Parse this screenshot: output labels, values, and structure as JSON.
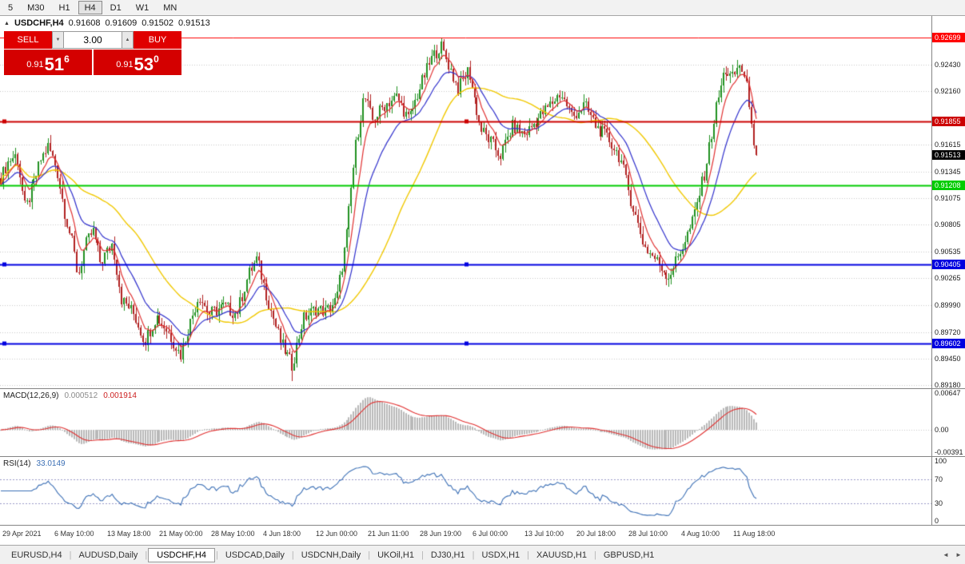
{
  "toolbar": {
    "timeframes": [
      "5",
      "M30",
      "H1",
      "H4",
      "D1",
      "W1",
      "MN"
    ],
    "active": "H4"
  },
  "chart_header": {
    "symbol_period": "USDCHF,H4",
    "open": "0.91608",
    "high": "0.91609",
    "low": "0.91502",
    "close": "0.91513"
  },
  "trade_panel": {
    "sell_label": "SELL",
    "buy_label": "BUY",
    "volume": "3.00",
    "bid_prefix": "0.91",
    "bid_big": "51",
    "bid_sup": "6",
    "ask_prefix": "0.91",
    "ask_big": "53",
    "ask_sup": "0"
  },
  "icons": {
    "collapse": "▲",
    "small_down": "▼",
    "small_up": "▲",
    "scroll_left": "◄",
    "scroll_right": "►"
  },
  "chart_data": {
    "type": "candlestick",
    "symbol": "USDCHF",
    "period": "H4",
    "bars": 320,
    "ylim": [
      0.8915,
      0.9292
    ],
    "y_ticks": [
      "0.92430",
      "0.92160",
      "0.91615",
      "0.91345",
      "0.91075",
      "0.90805",
      "0.90535",
      "0.90265",
      "0.89990",
      "0.89720",
      "0.89450",
      "0.89180"
    ],
    "current_price": {
      "value": 0.91513,
      "label": "0.91513",
      "bg": "#000000"
    },
    "horizontal_lines": [
      {
        "price": 0.92699,
        "label": "0.92699",
        "color": "#ff0000",
        "width": 1,
        "handles": false
      },
      {
        "price": 0.91855,
        "label": "0.91855",
        "color": "#cc0000",
        "width": 2,
        "handles": true
      },
      {
        "price": 0.91208,
        "label": "0.91208",
        "color": "#00cc00",
        "width": 2,
        "handles": false
      },
      {
        "price": 0.90405,
        "label": "0.90405",
        "color": "#0000e0",
        "width": 2,
        "handles": true
      },
      {
        "price": 0.89602,
        "label": "0.89602",
        "color": "#0000e0",
        "width": 2,
        "handles": true
      }
    ],
    "x_labels": [
      "29 Apr 2021",
      "6 May 10:00",
      "13 May 18:00",
      "21 May 00:00",
      "28 May 10:00",
      "4 Jun 18:00",
      "12 Jun 00:00",
      "21 Jun 11:00",
      "28 Jun 19:00",
      "6 Jul 00:00",
      "13 Jul 10:00",
      "20 Jul 18:00",
      "28 Jul 10:00",
      "4 Aug 10:00",
      "11 Aug 18:00"
    ],
    "price_path": [
      [
        0.0,
        0.9128
      ],
      [
        0.01,
        0.9145
      ],
      [
        0.021,
        0.9152
      ],
      [
        0.032,
        0.9095
      ],
      [
        0.042,
        0.9118
      ],
      [
        0.053,
        0.9146
      ],
      [
        0.063,
        0.916
      ],
      [
        0.074,
        0.9138
      ],
      [
        0.085,
        0.9092
      ],
      [
        0.095,
        0.906
      ],
      [
        0.102,
        0.9028
      ],
      [
        0.111,
        0.9058
      ],
      [
        0.122,
        0.9075
      ],
      [
        0.132,
        0.9042
      ],
      [
        0.148,
        0.9062
      ],
      [
        0.16,
        0.9005
      ],
      [
        0.175,
        0.8992
      ],
      [
        0.19,
        0.8963
      ],
      [
        0.206,
        0.8988
      ],
      [
        0.222,
        0.8972
      ],
      [
        0.238,
        0.8948
      ],
      [
        0.248,
        0.8975
      ],
      [
        0.262,
        0.901
      ],
      [
        0.275,
        0.899
      ],
      [
        0.296,
        0.8998
      ],
      [
        0.312,
        0.899
      ],
      [
        0.328,
        0.903
      ],
      [
        0.339,
        0.9046
      ],
      [
        0.354,
        0.9002
      ],
      [
        0.37,
        0.8962
      ],
      [
        0.386,
        0.8938
      ],
      [
        0.4,
        0.8985
      ],
      [
        0.418,
        0.8996
      ],
      [
        0.43,
        0.8992
      ],
      [
        0.444,
        0.9004
      ],
      [
        0.457,
        0.9066
      ],
      [
        0.47,
        0.916
      ],
      [
        0.481,
        0.9212
      ],
      [
        0.492,
        0.9186
      ],
      [
        0.508,
        0.9202
      ],
      [
        0.524,
        0.921
      ],
      [
        0.54,
        0.9186
      ],
      [
        0.556,
        0.9222
      ],
      [
        0.571,
        0.925
      ],
      [
        0.582,
        0.9262
      ],
      [
        0.593,
        0.9242
      ],
      [
        0.605,
        0.9218
      ],
      [
        0.619,
        0.9238
      ],
      [
        0.635,
        0.9178
      ],
      [
        0.651,
        0.9162
      ],
      [
        0.661,
        0.915
      ],
      [
        0.677,
        0.918
      ],
      [
        0.693,
        0.9172
      ],
      [
        0.709,
        0.9186
      ],
      [
        0.725,
        0.92
      ],
      [
        0.741,
        0.9214
      ],
      [
        0.757,
        0.919
      ],
      [
        0.772,
        0.9202
      ],
      [
        0.788,
        0.918
      ],
      [
        0.804,
        0.9168
      ],
      [
        0.82,
        0.9148
      ],
      [
        0.836,
        0.91
      ],
      [
        0.852,
        0.9058
      ],
      [
        0.868,
        0.9044
      ],
      [
        0.884,
        0.9028
      ],
      [
        0.899,
        0.9052
      ],
      [
        0.915,
        0.9082
      ],
      [
        0.931,
        0.9132
      ],
      [
        0.947,
        0.92
      ],
      [
        0.958,
        0.9238
      ],
      [
        0.968,
        0.9228
      ],
      [
        0.979,
        0.9244
      ],
      [
        0.989,
        0.9215
      ],
      [
        1.0,
        0.91513
      ]
    ],
    "pins": [
      {
        "t": 0.063,
        "high": 0.9168
      },
      {
        "t": 0.386,
        "low": 0.8922
      },
      {
        "t": 0.582,
        "high": 0.92699
      },
      {
        "t": 0.884,
        "low": 0.9018
      }
    ],
    "last_bars": {
      "prev": {
        "c": 0.91608
      },
      "last": {
        "o": 0.91608,
        "h": 0.91609,
        "l": 0.91502,
        "c": 0.91513
      }
    },
    "colors": {
      "up": "#209020",
      "down": "#b02020",
      "ma_fast": "#e03030",
      "ma_mid": "#3030cc",
      "ma_slow": "#f0c800",
      "grid": "#c8c8c8"
    }
  },
  "macd": {
    "name": "MACD(12,26,9)",
    "value_main": "0.000512",
    "value_signal": "0.001914",
    "params": [
      12,
      26,
      9
    ],
    "axis": [
      "0.00647",
      "0.00",
      "-0.00391"
    ],
    "range": [
      -0.0045,
      0.007
    ],
    "colors": {
      "histogram": "#b8b8b8",
      "signal": "#e03030"
    }
  },
  "rsi": {
    "name": "RSI(14)",
    "value": "33.0149",
    "period": 14,
    "axis": [
      "100",
      "70",
      "30",
      "0"
    ],
    "levels": [
      70,
      30
    ],
    "color": "#3b6fb5"
  },
  "tabs": {
    "separator": "|",
    "active": "USDCHF,H4",
    "items": [
      "EURUSD,H4",
      "AUDUSD,Daily",
      "USDCHF,H4",
      "USDCAD,Daily",
      "USDCNH,Daily",
      "UKOil,H1",
      "DJ30,H1",
      "USDX,H1",
      "XAUUSD,H1",
      "GBPUSD,H1"
    ]
  }
}
